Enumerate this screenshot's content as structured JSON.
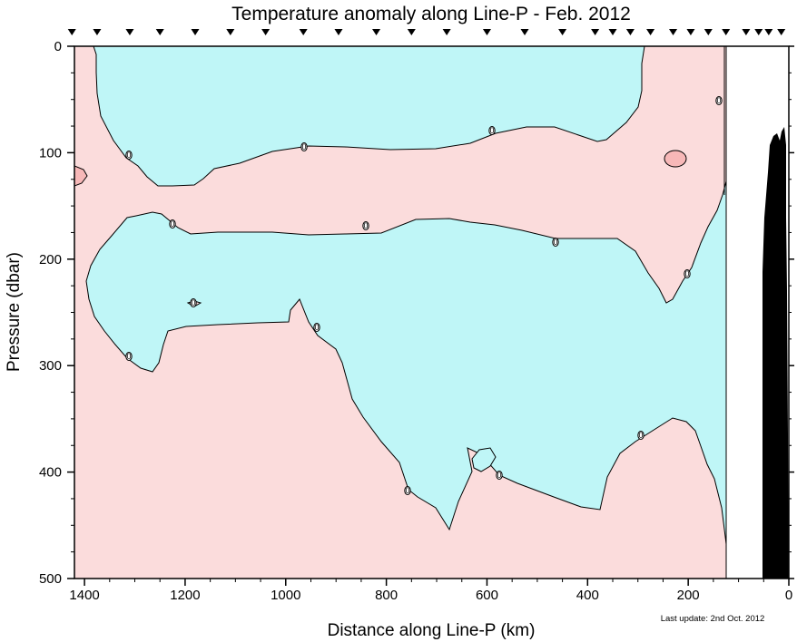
{
  "chart_data": {
    "type": "heatmap",
    "title": "Temperature anomaly along Line-P - Feb. 2012",
    "xlabel": "Distance along Line-P (km)",
    "ylabel": "Pressure (dbar)",
    "xlim": [
      1420,
      0
    ],
    "ylim": [
      0,
      500
    ],
    "x_reversed": true,
    "y_reversed": true,
    "x_ticks": [
      1400,
      1200,
      1000,
      800,
      600,
      400,
      200,
      0
    ],
    "y_ticks": [
      0,
      100,
      200,
      300,
      400,
      500
    ],
    "contour_level": 0,
    "contour_labels": [
      "0",
      "0",
      "0",
      "0",
      "0",
      "0",
      "0",
      "0",
      "0",
      "0",
      "0",
      "0",
      "0",
      "0"
    ],
    "colors": {
      "positive": "#fbdcdc",
      "negative": "#bff6f7",
      "positive_patch": "#f7b8b8",
      "bathymetry": "#000000",
      "contour": "#000000"
    },
    "station_markers_km": [
      1425,
      1375,
      1310,
      1250,
      1180,
      1110,
      1040,
      965,
      895,
      820,
      750,
      680,
      600,
      525,
      450,
      385,
      350,
      315,
      275,
      230,
      195,
      160,
      125,
      85,
      60,
      40,
      15
    ],
    "footnote": "Last update: 2nd Oct. 2012"
  }
}
